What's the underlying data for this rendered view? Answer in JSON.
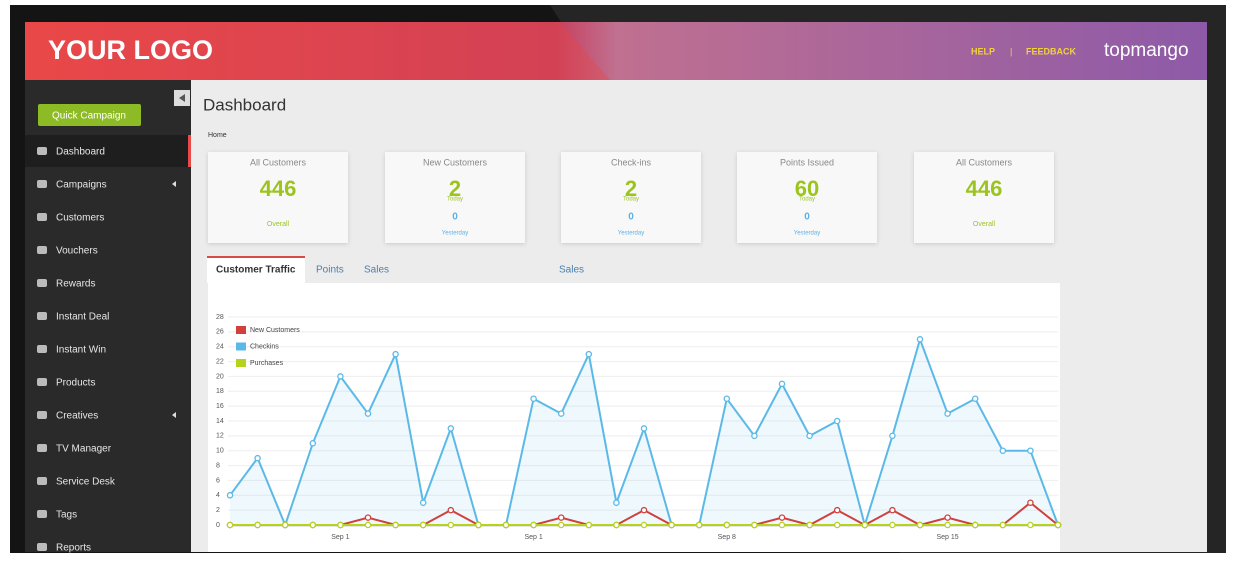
{
  "header": {
    "logo": "YOUR LOGO",
    "links": [
      "HELP",
      "|",
      "FEEDBACK"
    ],
    "brand": "topmango"
  },
  "sidebar": {
    "button": "Quick Campaign",
    "active": 0,
    "items": [
      "Dashboard",
      "Campaigns",
      "Customers",
      "Vouchers",
      "Rewards",
      "Instant Deal",
      "Instant Win",
      "Products",
      "Creatives",
      "TV Manager",
      "Service Desk",
      "Tags",
      "Reports"
    ]
  },
  "page": {
    "title": "Dashboard",
    "breadcrumb": "Home"
  },
  "cards": [
    {
      "label": "All Customers",
      "value": 446,
      "sub": "Overall"
    },
    {
      "label": "New Customers",
      "value": 2,
      "sub": "Today",
      "value2": 0,
      "sub2": "Yesterday"
    },
    {
      "label": "Check-ins",
      "value": 2,
      "sub": "Today",
      "value2": 0,
      "sub2": "Yesterday"
    },
    {
      "label": "Points Issued",
      "value": 60,
      "sub": "Today",
      "value2": 0,
      "sub2": "Yesterday"
    },
    {
      "label": "All Customers",
      "value": 446,
      "sub": "Overall"
    }
  ],
  "tabs": [
    "Customer Traffic",
    "Points",
    "Sales",
    "Sales"
  ],
  "chart_data": {
    "type": "line",
    "legend": "top-left",
    "grid": true,
    "categories": [
      null,
      null,
      null,
      null,
      "Sep 1",
      null,
      null,
      null,
      null,
      null,
      null,
      "Sep 1",
      null,
      null,
      null,
      null,
      null,
      null,
      "Sep 8",
      null,
      null,
      null,
      null,
      null,
      null,
      null,
      "Sep 15",
      null,
      null,
      null,
      null
    ],
    "series": [
      {
        "name": "New Customers",
        "color": "#d0413e",
        "values": [
          0,
          0,
          0,
          0,
          0,
          1,
          0,
          0,
          2,
          0,
          0,
          0,
          1,
          0,
          0,
          2,
          0,
          0,
          0,
          0,
          1,
          0,
          2,
          0,
          2,
          0,
          1,
          0,
          0,
          3,
          0
        ]
      },
      {
        "name": "Checkins",
        "color": "#5bb9e8",
        "values": [
          4,
          9,
          0,
          11,
          20,
          15,
          23,
          3,
          13,
          0,
          0,
          17,
          15,
          23,
          3,
          13,
          0,
          0,
          17,
          12,
          19,
          12,
          14,
          0,
          12,
          25,
          15,
          17,
          10,
          10,
          0
        ]
      },
      {
        "name": "Purchases",
        "color": "#b6d21c",
        "values": [
          0,
          0,
          0,
          0,
          0,
          0,
          0,
          0,
          0,
          0,
          0,
          0,
          0,
          0,
          0,
          0,
          0,
          0,
          0,
          0,
          0,
          0,
          0,
          0,
          0,
          0,
          0,
          0,
          0,
          0,
          0
        ]
      }
    ],
    "ylim": [
      0,
      28
    ],
    "yticks": [
      0,
      2,
      4,
      6,
      8,
      10,
      12,
      14,
      16,
      18,
      20,
      22,
      24,
      26,
      28
    ]
  }
}
